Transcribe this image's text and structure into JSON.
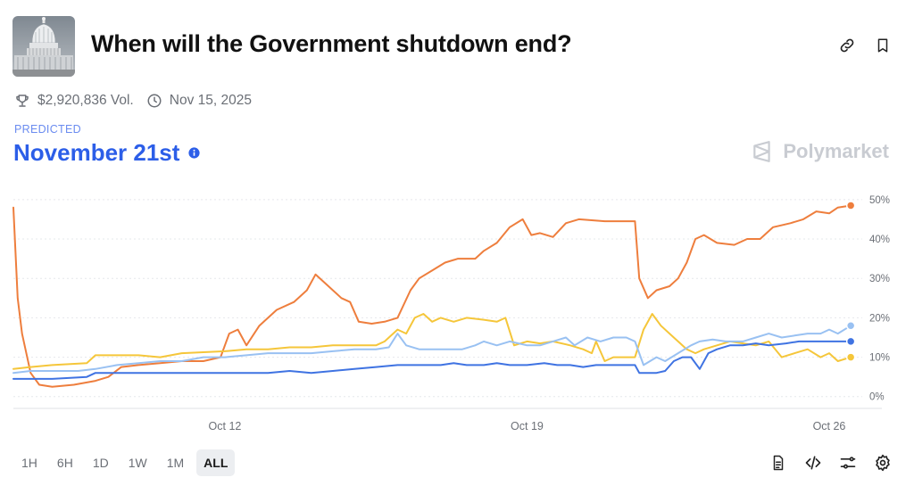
{
  "market": {
    "title": "When will the Government shutdown end?",
    "volume": "$2,920,836 Vol.",
    "date": "Nov 15, 2025",
    "predicted_label": "PREDICTED",
    "predicted_outcome": "November 21st",
    "brand": "Polymarket"
  },
  "icons": {
    "thumbnail": "capitol-building-icon",
    "link": "link-icon",
    "bookmark": "bookmark-icon",
    "volume": "trophy-icon",
    "date": "clock-icon",
    "info": "info-icon",
    "brand": "polymarket-logo-icon",
    "doc": "document-icon",
    "embed": "code-icon",
    "filters": "sliders-icon",
    "settings": "gear-icon"
  },
  "time_ranges": [
    {
      "label": "1H",
      "active": false
    },
    {
      "label": "6H",
      "active": false
    },
    {
      "label": "1D",
      "active": false
    },
    {
      "label": "1W",
      "active": false
    },
    {
      "label": "1M",
      "active": false
    },
    {
      "label": "ALL",
      "active": true
    }
  ],
  "colors": {
    "orange": "#ee7e3d",
    "yellow": "#f5c63a",
    "light_blue": "#99c1f2",
    "blue": "#3f73e2",
    "accent": "#2c5ee8"
  },
  "chart_data": {
    "type": "line",
    "x_ticks": [
      "Oct 12",
      "Oct 19",
      "Oct 26"
    ],
    "x_tick_days": [
      12,
      19,
      26
    ],
    "xlim": [
      7.1,
      26.6
    ],
    "y_ticks": [
      "0%",
      "10%",
      "20%",
      "30%",
      "40%",
      "50%"
    ],
    "y_tick_values": [
      0,
      10,
      20,
      30,
      40,
      50
    ],
    "ylim": [
      -3,
      52
    ],
    "grid": true,
    "series": [
      {
        "color_key": "orange",
        "points": [
          [
            7.1,
            48
          ],
          [
            7.2,
            25
          ],
          [
            7.3,
            16
          ],
          [
            7.5,
            6
          ],
          [
            7.7,
            3
          ],
          [
            8,
            2.5
          ],
          [
            8.5,
            3
          ],
          [
            9,
            4
          ],
          [
            9.3,
            5
          ],
          [
            9.6,
            7.5
          ],
          [
            10,
            8
          ],
          [
            10.5,
            8.5
          ],
          [
            11,
            9
          ],
          [
            11.5,
            9
          ],
          [
            11.9,
            10
          ],
          [
            12.1,
            16
          ],
          [
            12.3,
            17
          ],
          [
            12.5,
            13
          ],
          [
            12.8,
            18
          ],
          [
            13.2,
            22
          ],
          [
            13.6,
            24
          ],
          [
            13.9,
            27
          ],
          [
            14.1,
            31
          ],
          [
            14.4,
            28
          ],
          [
            14.7,
            25
          ],
          [
            14.9,
            24
          ],
          [
            15.1,
            19
          ],
          [
            15.4,
            18.5
          ],
          [
            15.7,
            19
          ],
          [
            16,
            20
          ],
          [
            16.3,
            27
          ],
          [
            16.5,
            30
          ],
          [
            16.8,
            32
          ],
          [
            17.1,
            34
          ],
          [
            17.4,
            35
          ],
          [
            17.8,
            35
          ],
          [
            18,
            37
          ],
          [
            18.3,
            39
          ],
          [
            18.6,
            43
          ],
          [
            18.9,
            45
          ],
          [
            19.1,
            41
          ],
          [
            19.3,
            41.5
          ],
          [
            19.6,
            40.5
          ],
          [
            19.9,
            44
          ],
          [
            20.2,
            45
          ],
          [
            20.8,
            44.5
          ],
          [
            21.3,
            44.5
          ],
          [
            21.5,
            44.5
          ],
          [
            21.6,
            30
          ],
          [
            21.8,
            25
          ],
          [
            22,
            27
          ],
          [
            22.3,
            28
          ],
          [
            22.5,
            30
          ],
          [
            22.7,
            34
          ],
          [
            22.9,
            40
          ],
          [
            23.1,
            41
          ],
          [
            23.4,
            39
          ],
          [
            23.8,
            38.5
          ],
          [
            24.1,
            40
          ],
          [
            24.4,
            40
          ],
          [
            24.7,
            43
          ],
          [
            25.1,
            44
          ],
          [
            25.4,
            45
          ],
          [
            25.7,
            47
          ],
          [
            26,
            46.5
          ],
          [
            26.2,
            48
          ],
          [
            26.5,
            48.5
          ]
        ]
      },
      {
        "color_key": "yellow",
        "points": [
          [
            7.1,
            7
          ],
          [
            7.5,
            7.5
          ],
          [
            8,
            8
          ],
          [
            8.8,
            8.5
          ],
          [
            9,
            10.5
          ],
          [
            9.5,
            10.5
          ],
          [
            10,
            10.5
          ],
          [
            10.5,
            10
          ],
          [
            11,
            11
          ],
          [
            12,
            11.5
          ],
          [
            12.5,
            12
          ],
          [
            13,
            12
          ],
          [
            13.5,
            12.5
          ],
          [
            14,
            12.5
          ],
          [
            14.5,
            13
          ],
          [
            15,
            13
          ],
          [
            15.5,
            13
          ],
          [
            15.7,
            14
          ],
          [
            16,
            17
          ],
          [
            16.2,
            16
          ],
          [
            16.4,
            20
          ],
          [
            16.6,
            21
          ],
          [
            16.8,
            19
          ],
          [
            17,
            20
          ],
          [
            17.3,
            19
          ],
          [
            17.6,
            20
          ],
          [
            18,
            19.5
          ],
          [
            18.3,
            19
          ],
          [
            18.5,
            20
          ],
          [
            18.7,
            13
          ],
          [
            19,
            14
          ],
          [
            19.3,
            13.5
          ],
          [
            19.6,
            14
          ],
          [
            20,
            13
          ],
          [
            20.3,
            12
          ],
          [
            20.5,
            11
          ],
          [
            20.6,
            14
          ],
          [
            20.8,
            9
          ],
          [
            21,
            10
          ],
          [
            21.3,
            10
          ],
          [
            21.5,
            10
          ],
          [
            21.7,
            17
          ],
          [
            21.9,
            21
          ],
          [
            22.1,
            18
          ],
          [
            22.3,
            16
          ],
          [
            22.5,
            14
          ],
          [
            22.7,
            12
          ],
          [
            22.9,
            11
          ],
          [
            23.1,
            12
          ],
          [
            23.4,
            13
          ],
          [
            23.7,
            14
          ],
          [
            24,
            13.5
          ],
          [
            24.3,
            13
          ],
          [
            24.6,
            14
          ],
          [
            24.9,
            10
          ],
          [
            25.2,
            11
          ],
          [
            25.5,
            12
          ],
          [
            25.8,
            10
          ],
          [
            26,
            11
          ],
          [
            26.2,
            9
          ],
          [
            26.5,
            10
          ]
        ]
      },
      {
        "color_key": "light_blue",
        "points": [
          [
            7.1,
            6
          ],
          [
            7.5,
            6.5
          ],
          [
            8,
            6.5
          ],
          [
            8.6,
            6.5
          ],
          [
            9,
            7
          ],
          [
            9.5,
            8
          ],
          [
            10,
            8.5
          ],
          [
            10.5,
            9
          ],
          [
            11,
            9
          ],
          [
            11.5,
            10
          ],
          [
            12,
            10
          ],
          [
            12.5,
            10.5
          ],
          [
            13,
            11
          ],
          [
            13.5,
            11
          ],
          [
            14,
            11
          ],
          [
            14.5,
            11.5
          ],
          [
            15,
            12
          ],
          [
            15.5,
            12
          ],
          [
            15.8,
            12.5
          ],
          [
            16,
            16
          ],
          [
            16.2,
            13
          ],
          [
            16.5,
            12
          ],
          [
            17,
            12
          ],
          [
            17.5,
            12
          ],
          [
            17.8,
            13
          ],
          [
            18,
            14
          ],
          [
            18.3,
            13
          ],
          [
            18.6,
            14
          ],
          [
            19,
            13
          ],
          [
            19.3,
            13
          ],
          [
            19.6,
            14
          ],
          [
            19.9,
            15
          ],
          [
            20.1,
            13
          ],
          [
            20.4,
            15
          ],
          [
            20.7,
            14
          ],
          [
            21,
            15
          ],
          [
            21.3,
            15
          ],
          [
            21.5,
            14
          ],
          [
            21.7,
            8
          ],
          [
            22,
            10
          ],
          [
            22.2,
            9
          ],
          [
            22.5,
            11
          ],
          [
            22.8,
            13
          ],
          [
            23,
            14
          ],
          [
            23.3,
            14.5
          ],
          [
            23.6,
            14
          ],
          [
            24,
            14
          ],
          [
            24.3,
            15
          ],
          [
            24.6,
            16
          ],
          [
            24.9,
            15
          ],
          [
            25.2,
            15.5
          ],
          [
            25.5,
            16
          ],
          [
            25.8,
            16
          ],
          [
            26,
            17
          ],
          [
            26.2,
            16
          ],
          [
            26.5,
            18
          ]
        ]
      },
      {
        "color_key": "blue",
        "points": [
          [
            7.1,
            4.5
          ],
          [
            7.5,
            4.5
          ],
          [
            8,
            4.5
          ],
          [
            8.8,
            5
          ],
          [
            9,
            6
          ],
          [
            9.5,
            6
          ],
          [
            10,
            6
          ],
          [
            11,
            6
          ],
          [
            12,
            6
          ],
          [
            13,
            6
          ],
          [
            13.5,
            6.5
          ],
          [
            14,
            6
          ],
          [
            14.5,
            6.5
          ],
          [
            15,
            7
          ],
          [
            15.5,
            7.5
          ],
          [
            16,
            8
          ],
          [
            16.5,
            8
          ],
          [
            17,
            8
          ],
          [
            17.3,
            8.5
          ],
          [
            17.6,
            8
          ],
          [
            18,
            8
          ],
          [
            18.3,
            8.5
          ],
          [
            18.6,
            8
          ],
          [
            19,
            8
          ],
          [
            19.4,
            8.5
          ],
          [
            19.7,
            8
          ],
          [
            20,
            8
          ],
          [
            20.3,
            7.5
          ],
          [
            20.6,
            8
          ],
          [
            21,
            8
          ],
          [
            21.3,
            8
          ],
          [
            21.5,
            8
          ],
          [
            21.6,
            6
          ],
          [
            22,
            6
          ],
          [
            22.2,
            6.5
          ],
          [
            22.4,
            9
          ],
          [
            22.6,
            10
          ],
          [
            22.8,
            10
          ],
          [
            23,
            7
          ],
          [
            23.2,
            11
          ],
          [
            23.4,
            12
          ],
          [
            23.7,
            13
          ],
          [
            24,
            13
          ],
          [
            24.3,
            13.5
          ],
          [
            24.6,
            13
          ],
          [
            25,
            13.5
          ],
          [
            25.3,
            14
          ],
          [
            25.6,
            14
          ],
          [
            26,
            14
          ],
          [
            26.5,
            14
          ]
        ]
      }
    ]
  }
}
